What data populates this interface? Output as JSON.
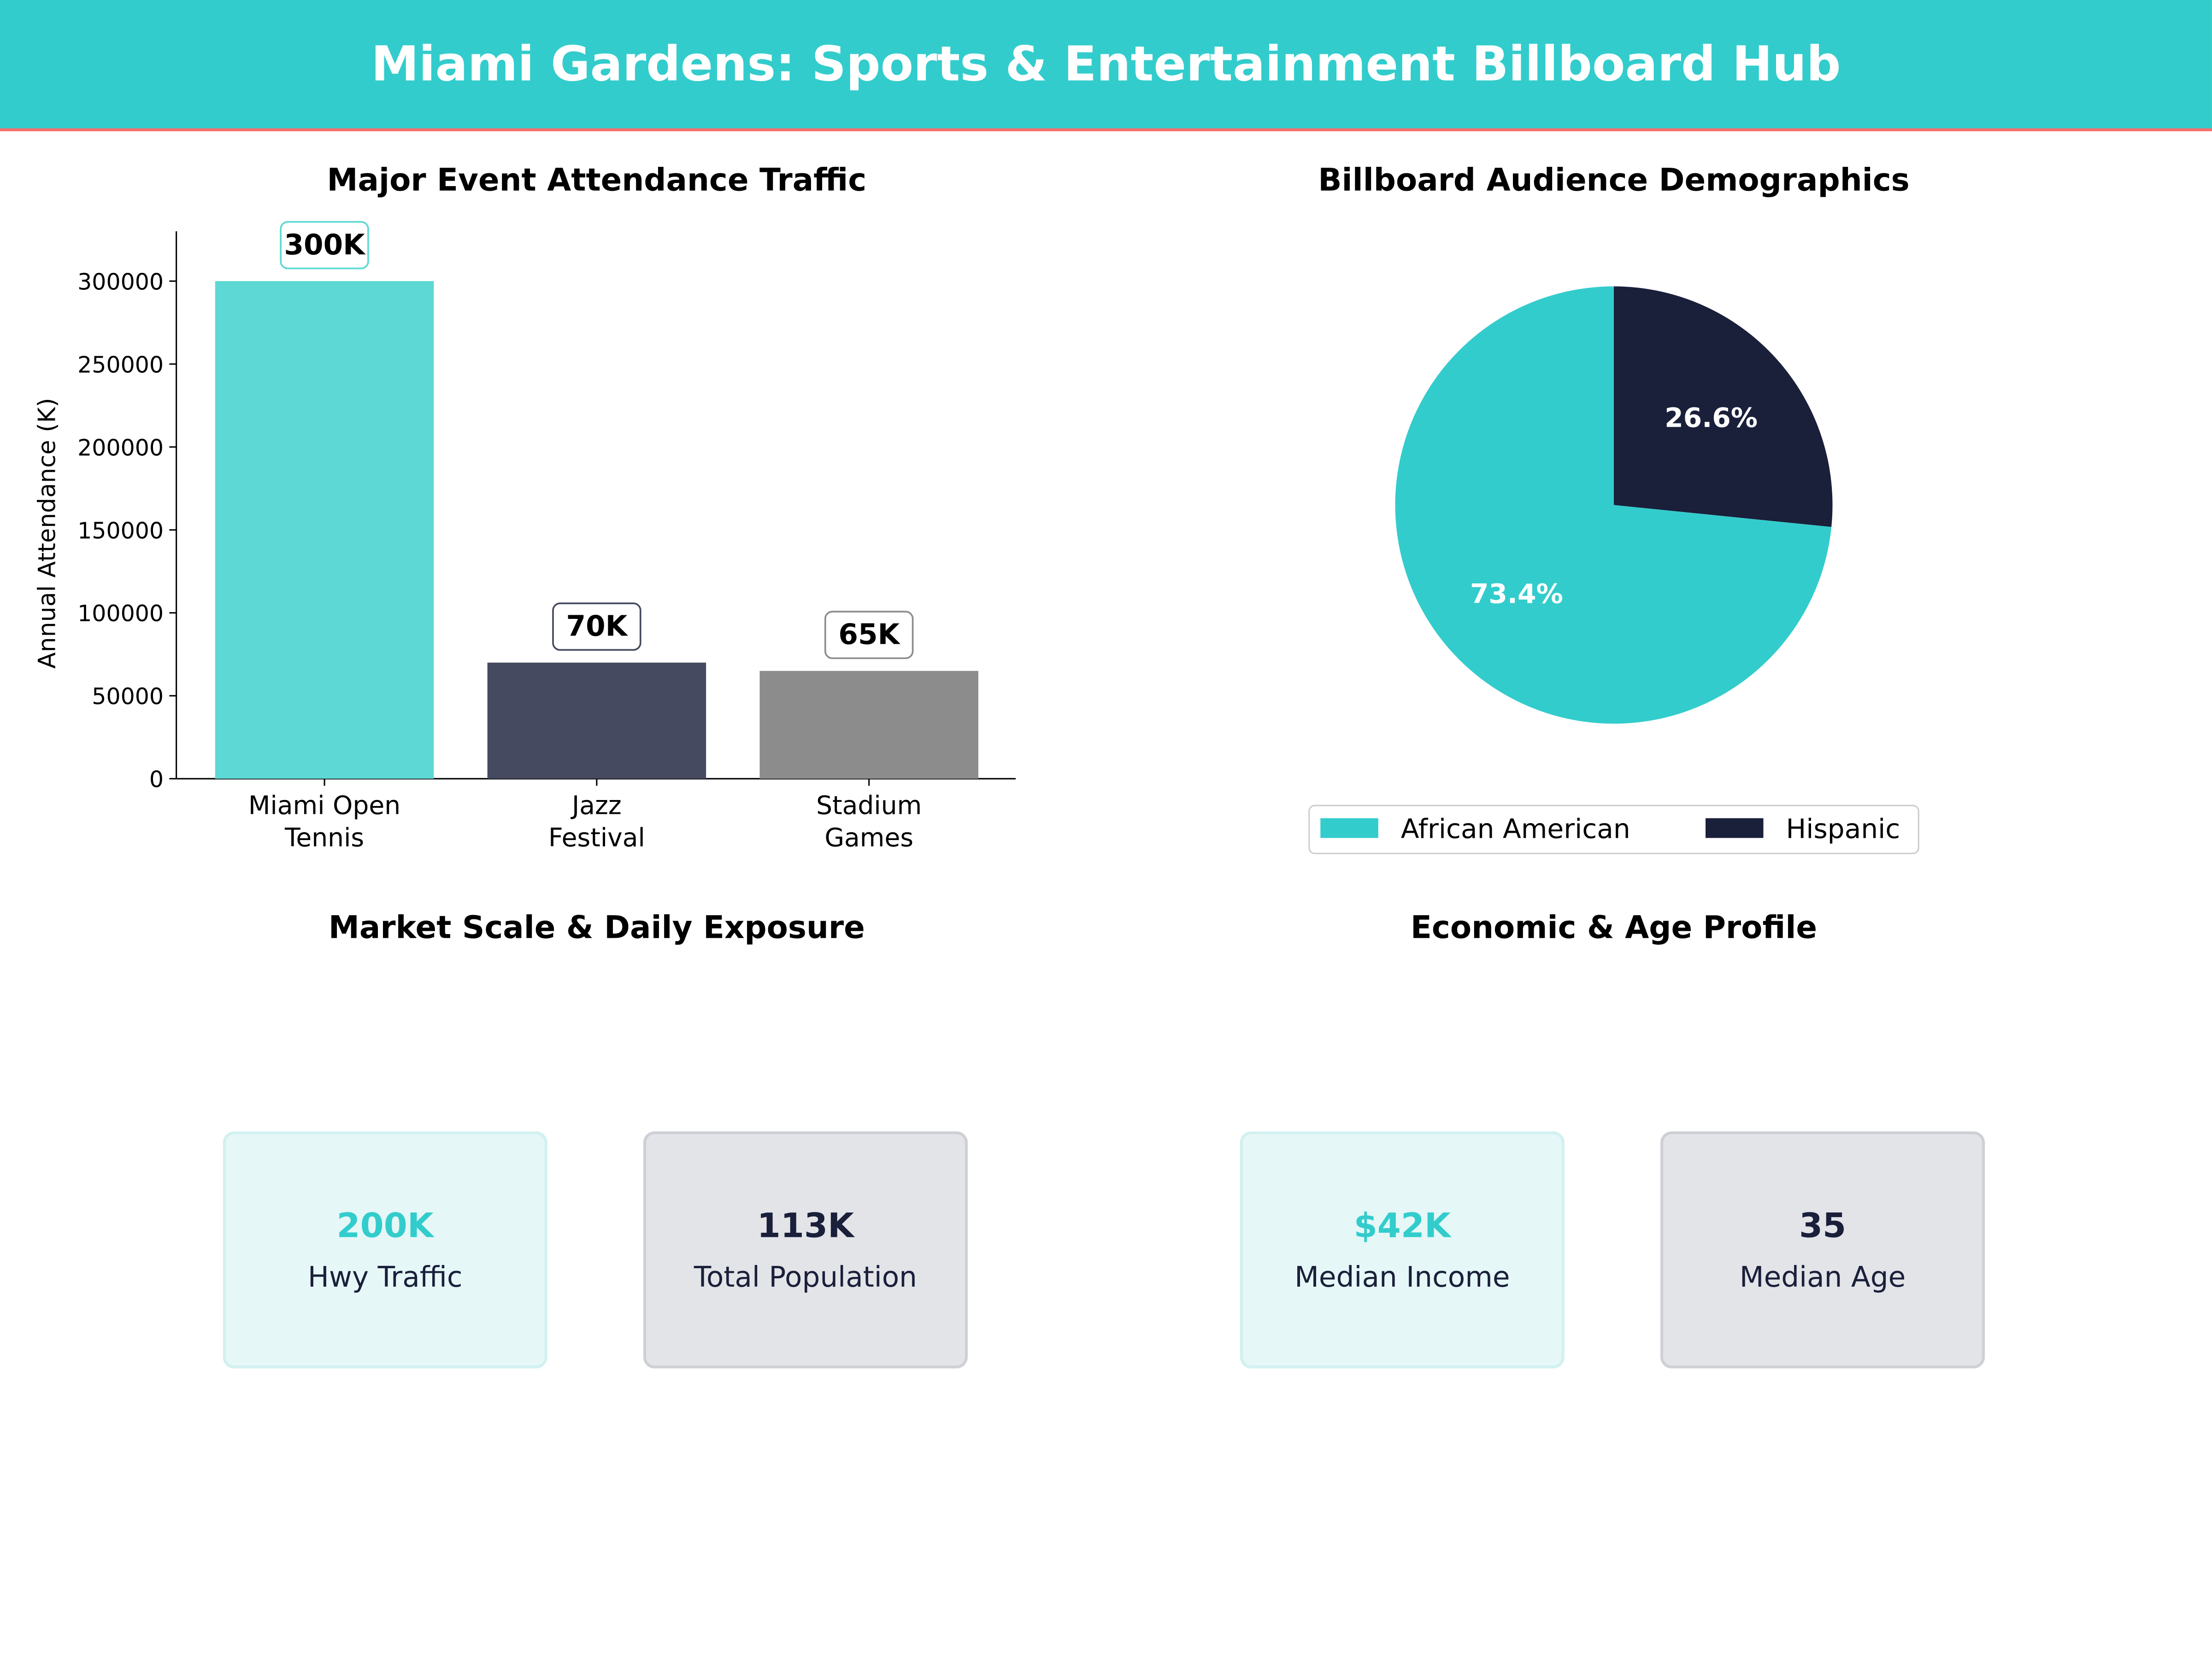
{
  "header": {
    "title": "Miami Gardens: Sports & Entertainment Billboard Hub"
  },
  "colors": {
    "accent": "#33cccc",
    "header_border": "#ff6b6b",
    "navy": "#1a1f3a"
  },
  "chart_data": [
    {
      "type": "bar",
      "title": "Major Event Attendance Traffic",
      "xlabel": "",
      "ylabel": "Annual Attendance (K)",
      "categories": [
        "Miami Open\nTennis",
        "Jazz\nFestival",
        "Stadium\nGames"
      ],
      "values": [
        300000,
        70000,
        65000
      ],
      "data_labels": [
        "300K",
        "70K",
        "65K"
      ],
      "colors": [
        "#5dd8d4",
        "#454a60",
        "#8c8c8c"
      ],
      "label_border_colors": [
        "#5dd8d4",
        "#454a60",
        "#8c8c8c"
      ],
      "ylim": [
        0,
        330000
      ],
      "yticks": [
        0,
        50000,
        100000,
        150000,
        200000,
        250000,
        300000
      ],
      "grid": false
    },
    {
      "type": "pie",
      "title": "Billboard Audience Demographics",
      "labels": [
        "Hispanic",
        "African American"
      ],
      "values": [
        26.6,
        73.4
      ],
      "data_labels": [
        "26.6%",
        "73.4%"
      ],
      "colors": [
        "#1a1f3a",
        "#33cccc"
      ],
      "start_angle": 90,
      "direction": "clockwise",
      "legend": {
        "placement": "bottom",
        "entries": [
          "African American",
          "Hispanic"
        ]
      }
    }
  ],
  "market": {
    "title": "Market Scale & Daily Exposure",
    "cards": [
      {
        "value": "200K",
        "label": "Hwy Traffic",
        "color": "#33cccc"
      },
      {
        "value": "113K",
        "label": "Total Population",
        "color": "#1a1f3a"
      }
    ]
  },
  "profile": {
    "title": "Economic & Age Profile",
    "cards": [
      {
        "value": "$42K",
        "label": "Median Income",
        "color": "#33cccc"
      },
      {
        "value": "35",
        "label": "Median Age",
        "color": "#1a1f3a"
      }
    ]
  }
}
